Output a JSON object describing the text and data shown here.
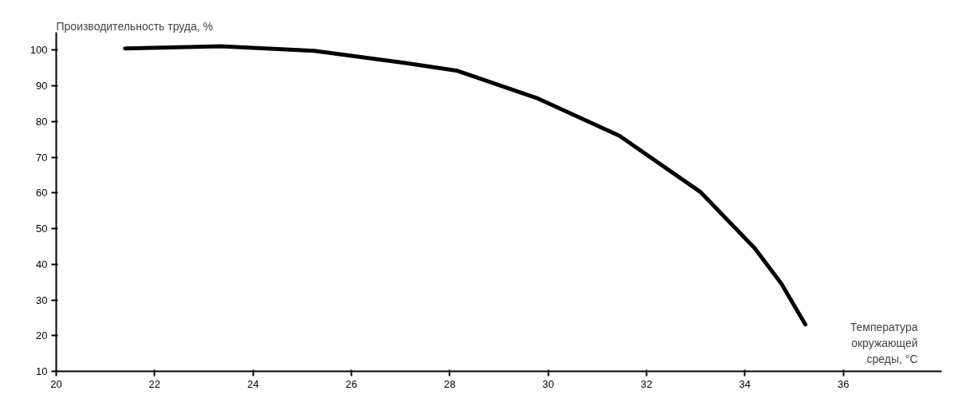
{
  "chart_data": {
    "type": "line",
    "ylabel": "Производительность труда, %",
    "xlabel": "Температура\nокружающей\nсреды, °C",
    "x": [
      21.4,
      23.35,
      25.25,
      27.1,
      28.16,
      29.8,
      31.45,
      33.1,
      34.2,
      34.74,
      35.23
    ],
    "series": [
      {
        "color": "#000000",
        "values": [
          100.5,
          101.1,
          99.8,
          96.4,
          94.2,
          86.4,
          76,
          60.2,
          44.5,
          34.6,
          23.1
        ]
      }
    ],
    "xlim": [
      20,
      38
    ],
    "xticks": [
      20,
      22,
      24,
      26,
      28,
      30,
      32,
      34,
      36
    ],
    "ylim": [
      10,
      105
    ],
    "yticks": [
      10,
      20,
      30,
      40,
      50,
      60,
      70,
      80,
      90,
      100
    ],
    "grid": false
  }
}
